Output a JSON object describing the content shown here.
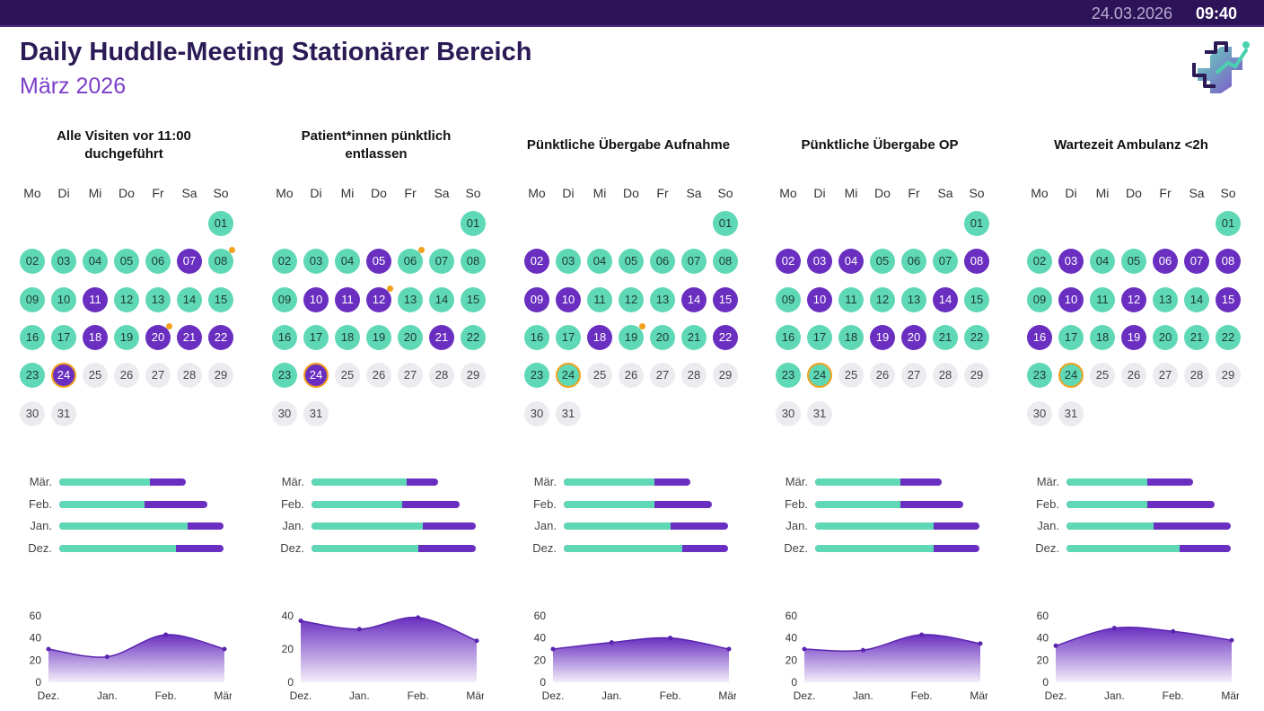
{
  "header": {
    "title": "Daily Huddle-Meeting Stationärer Bereich",
    "subtitle": "März 2026",
    "date": "24.03.2026",
    "time": "09:40"
  },
  "colors": {
    "good": "#5fd8b6",
    "bad": "#6a2fc0",
    "future": "#ececf0",
    "today_ring": "#f2a11d",
    "header_bg": "#2d1459"
  },
  "icons": {
    "logo": "medical-cross-growth-logo-icon"
  },
  "weekdays": [
    "Mo",
    "Di",
    "Mi",
    "Do",
    "Fr",
    "Sa",
    "So"
  ],
  "calendar": {
    "month_start_weekday": 6,
    "days_in_month": 31,
    "today": 24
  },
  "bar_months": [
    "Mär.",
    "Feb.",
    "Jan.",
    "Dez."
  ],
  "panels": [
    {
      "title": "Alle Visiten vor 11:00 duchgeführt",
      "bad_days": [
        7,
        11,
        18,
        20,
        21,
        22,
        24
      ],
      "dot_days": [
        8,
        20
      ],
      "bars": [
        {
          "good": 0.55,
          "total": 0.77
        },
        {
          "good": 0.52,
          "total": 0.9
        },
        {
          "good": 0.78,
          "total": 1.0
        },
        {
          "good": 0.71,
          "total": 1.0
        }
      ],
      "chart_data": {
        "type": "area",
        "x": [
          "Dez.",
          "Jan.",
          "Feb.",
          "Mär."
        ],
        "values": [
          30,
          23,
          43,
          30
        ],
        "ylim": [
          0,
          60
        ],
        "yticks": [
          0,
          20,
          40,
          60
        ]
      }
    },
    {
      "title": "Patient*innen pünktlich entlassen",
      "bad_days": [
        5,
        10,
        11,
        12,
        21,
        24
      ],
      "dot_days": [
        6,
        12
      ],
      "bars": [
        {
          "good": 0.58,
          "total": 0.77
        },
        {
          "good": 0.55,
          "total": 0.9
        },
        {
          "good": 0.68,
          "total": 1.0
        },
        {
          "good": 0.65,
          "total": 1.0
        }
      ],
      "chart_data": {
        "type": "area",
        "x": [
          "Dez.",
          "Jan.",
          "Feb.",
          "Mär."
        ],
        "values": [
          37,
          32,
          39,
          25
        ],
        "ylim": [
          0,
          40
        ],
        "yticks": [
          0,
          20,
          40
        ]
      }
    },
    {
      "title": "Pünktliche Übergabe Aufnahme",
      "bad_days": [
        2,
        9,
        10,
        14,
        15,
        18,
        22
      ],
      "dot_days": [
        19
      ],
      "bars": [
        {
          "good": 0.55,
          "total": 0.77
        },
        {
          "good": 0.55,
          "total": 0.9
        },
        {
          "good": 0.65,
          "total": 1.0
        },
        {
          "good": 0.72,
          "total": 1.0
        }
      ],
      "chart_data": {
        "type": "area",
        "x": [
          "Dez.",
          "Jan.",
          "Feb.",
          "Mär."
        ],
        "values": [
          30,
          36,
          40,
          30
        ],
        "ylim": [
          0,
          60
        ],
        "yticks": [
          0,
          20,
          40,
          60
        ]
      }
    },
    {
      "title": "Pünktliche Übergabe OP",
      "bad_days": [
        2,
        3,
        4,
        8,
        10,
        14,
        19,
        20
      ],
      "dot_days": [],
      "bars": [
        {
          "good": 0.52,
          "total": 0.77
        },
        {
          "good": 0.52,
          "total": 0.9
        },
        {
          "good": 0.72,
          "total": 1.0
        },
        {
          "good": 0.72,
          "total": 1.0
        }
      ],
      "chart_data": {
        "type": "area",
        "x": [
          "Dez.",
          "Jan.",
          "Feb.",
          "Mär."
        ],
        "values": [
          30,
          29,
          43,
          35
        ],
        "ylim": [
          0,
          60
        ],
        "yticks": [
          0,
          20,
          40,
          60
        ]
      }
    },
    {
      "title": "Wartezeit Ambulanz <2h",
      "bad_days": [
        3,
        6,
        7,
        8,
        10,
        12,
        15,
        16,
        19
      ],
      "dot_days": [],
      "bars": [
        {
          "good": 0.49,
          "total": 0.77
        },
        {
          "good": 0.49,
          "total": 0.9
        },
        {
          "good": 0.53,
          "total": 1.0
        },
        {
          "good": 0.69,
          "total": 1.0
        }
      ],
      "chart_data": {
        "type": "area",
        "x": [
          "Dez.",
          "Jan.",
          "Feb.",
          "Mär."
        ],
        "values": [
          33,
          49,
          46,
          38
        ],
        "ylim": [
          0,
          60
        ],
        "yticks": [
          0,
          20,
          40,
          60
        ]
      }
    }
  ]
}
